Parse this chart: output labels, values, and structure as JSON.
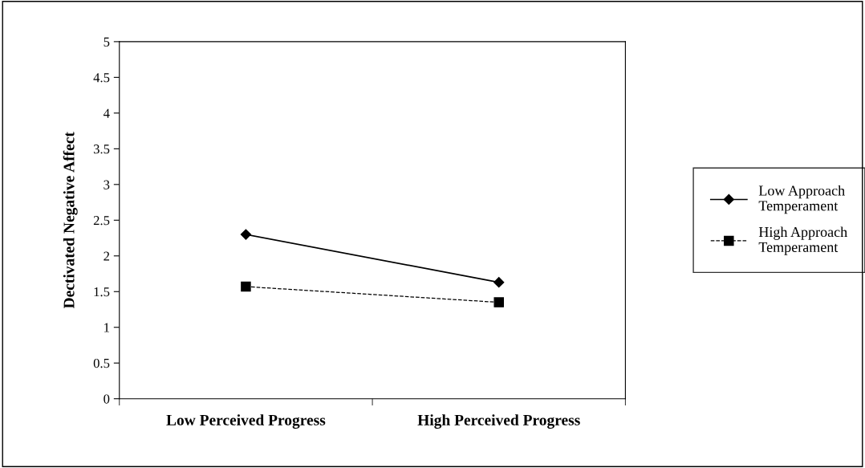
{
  "chart_data": {
    "type": "line",
    "ylabel": "Dectivated Negative Affect",
    "categories": [
      "Low Perceived Progress",
      "High Perceived Progress"
    ],
    "series": [
      {
        "name": "Low Approach\nTemperament",
        "color": "#000000",
        "values": [
          2.3,
          1.63
        ],
        "marker": "diamond",
        "line_style": "solid"
      },
      {
        "name": "High Approach\nTemperament",
        "color": "#000000",
        "values": [
          1.57,
          1.35
        ],
        "marker": "square",
        "line_style": "dashed"
      }
    ],
    "ylim": [
      0,
      5
    ],
    "yticks": [
      0,
      0.5,
      1,
      1.5,
      2,
      2.5,
      3,
      3.5,
      4,
      4.5,
      5
    ],
    "grid": false,
    "legend": "right"
  }
}
